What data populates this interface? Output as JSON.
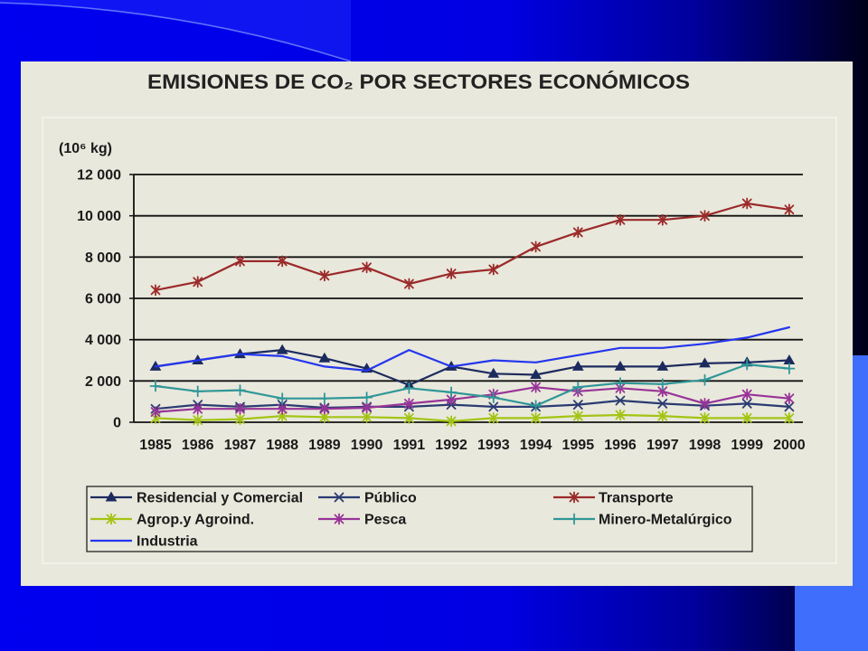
{
  "theme": {
    "slide_blue": "#0000f0",
    "slide_navy": "#00009c",
    "slide_dark": "#000018",
    "accent_blue": "#3f6dfc",
    "chart_background": "#e9e8dc",
    "text_color": "#1a1a1a"
  },
  "chart_data": {
    "type": "line",
    "title": "EMISIONES DE CO₂ POR SECTORES ECONÓMICOS",
    "ylabel": "(10⁶ kg)",
    "ylim": [
      0,
      12000
    ],
    "y_tick_values": [
      0,
      2000,
      4000,
      6000,
      8000,
      10000,
      12000
    ],
    "y_tick_labels": [
      "0",
      "2 000",
      "4 000",
      "6 000",
      "8 000",
      "10 000",
      "12 000"
    ],
    "categories": [
      "1985",
      "1986",
      "1987",
      "1988",
      "1989",
      "1990",
      "1991",
      "1992",
      "1993",
      "1994",
      "1995",
      "1996",
      "1997",
      "1998",
      "1999",
      "2000"
    ],
    "grid": true,
    "legend_position": "bottom",
    "series": [
      {
        "name": "Residencial y Comercial",
        "color": "#1c2b5e",
        "marker": "triangle",
        "values": [
          2700,
          3000,
          3300,
          3500,
          3100,
          2600,
          1800,
          2700,
          2350,
          2300,
          2700,
          2700,
          2700,
          2850,
          2900,
          3000
        ]
      },
      {
        "name": "Público",
        "color": "#2a3b72",
        "marker": "x",
        "values": [
          650,
          850,
          750,
          850,
          700,
          750,
          750,
          850,
          750,
          750,
          850,
          1050,
          900,
          800,
          900,
          750
        ]
      },
      {
        "name": "Transporte",
        "color": "#9b2a2a",
        "marker": "star",
        "values": [
          6400,
          6800,
          7800,
          7800,
          7100,
          7500,
          6700,
          7200,
          7400,
          8500,
          9200,
          9800,
          9800,
          10000,
          10600,
          10300
        ]
      },
      {
        "name": "Agrop.y Agroind.",
        "color": "#a3c414",
        "marker": "star",
        "values": [
          200,
          100,
          150,
          300,
          250,
          250,
          200,
          50,
          200,
          200,
          300,
          350,
          300,
          200,
          200,
          200
        ]
      },
      {
        "name": "Pesca",
        "color": "#983498",
        "marker": "star",
        "values": [
          500,
          650,
          650,
          650,
          650,
          700,
          900,
          1100,
          1350,
          1700,
          1500,
          1650,
          1500,
          900,
          1350,
          1150
        ]
      },
      {
        "name": "Minero-Metalúrgico",
        "color": "#2f9797",
        "marker": "plus",
        "values": [
          1750,
          1500,
          1550,
          1150,
          1150,
          1200,
          1650,
          1450,
          1200,
          800,
          1700,
          1900,
          1850,
          2050,
          2800,
          2600
        ]
      },
      {
        "name": "Industria",
        "color": "#2436ee",
        "marker": "none",
        "values": [
          2700,
          3000,
          3300,
          3200,
          2700,
          2500,
          3500,
          2700,
          3000,
          2900,
          3250,
          3600,
          3600,
          3800,
          4100,
          4600
        ]
      }
    ]
  }
}
